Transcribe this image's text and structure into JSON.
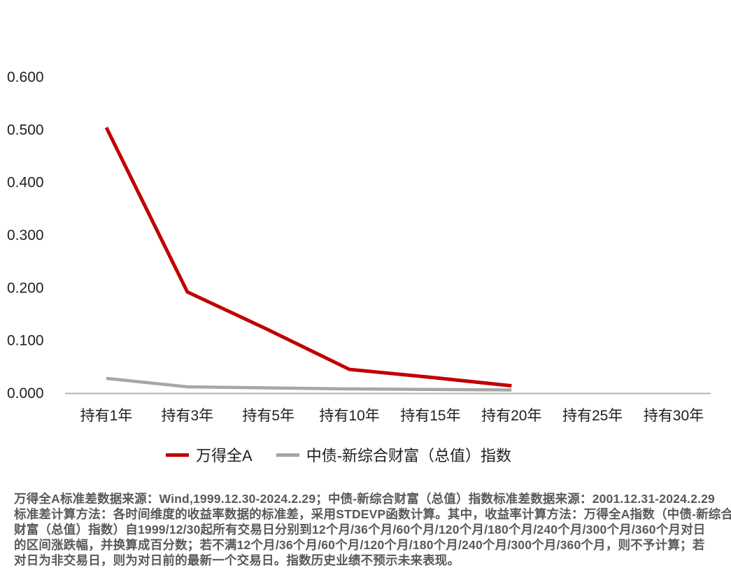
{
  "chart_data": {
    "type": "line",
    "title": "",
    "xlabel": "",
    "ylabel": "",
    "categories": [
      "持有1年",
      "持有3年",
      "持有5年",
      "持有10年",
      "持有15年",
      "持有20年",
      "持有25年",
      "持有30年"
    ],
    "series": [
      {
        "name": "万得全A",
        "color": "#c00000",
        "values": [
          0.504,
          0.192,
          0.12,
          0.045,
          0.03,
          0.014,
          null,
          null
        ]
      },
      {
        "name": "中债-新综合财富（总值）指数",
        "color": "#a6a6a6",
        "values": [
          0.028,
          0.012,
          0.01,
          0.008,
          0.007,
          0.006,
          null,
          null
        ]
      }
    ],
    "ylim": [
      0,
      0.6
    ],
    "ytick_labels": [
      "0.000",
      "0.100",
      "0.200",
      "0.300",
      "0.400",
      "0.500",
      "0.600"
    ],
    "grid": false,
    "legend_position": "bottom",
    "axis_color": "#b3b3b3",
    "tick_label_color": "#1f1f1f"
  },
  "caption": {
    "lines": [
      "万得全A标准差数据来源：Wind,1999.12.30-2024.2.29；中债-新综合财富（总值）指数标准差数据来源：2001.12.31-2024.2.29",
      "标准差计算方法：各时间维度的收益率数据的标准差，采用STDEVP函数计算。其中，收益率计算方法：万得全A指数（中债-新综合",
      "财富（总值）指数）自1999/12/30起所有交易日分别到12个月/36个月/60个月/120个月/180个月/240个月/300个月/360个月对日",
      "的区间涨跌幅，并换算成百分数；若不满12个月/36个月/60个月/120个月/180个月/240个月/300个月/360个月，则不予计算；若",
      "对日为非交易日，则为对日前的最新一个交易日。指数历史业绩不预示未来表现。"
    ]
  }
}
